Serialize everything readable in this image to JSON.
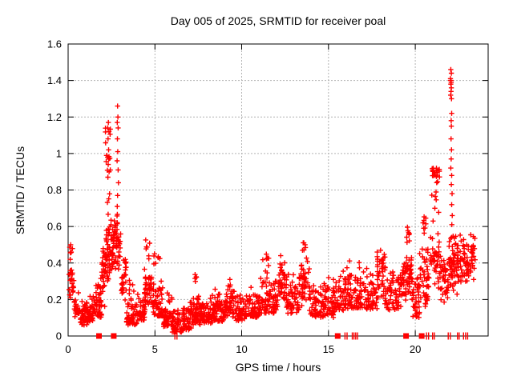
{
  "figure": {
    "background": "#ffffff",
    "text_color": "#000000"
  },
  "chart_data": {
    "type": "scatter",
    "title": "Day 005 of 2025, SRMTID for receiver poal",
    "xlabel": "GPS time / hours",
    "ylabel": "SRMTID / TECUs",
    "xlim": [
      0,
      24.2
    ],
    "ylim": [
      0,
      1.6
    ],
    "xticks": [
      0,
      5,
      10,
      15,
      20
    ],
    "xtick_labels": [
      "0",
      "5",
      "10",
      "15",
      "20"
    ],
    "yticks": [
      0,
      0.2,
      0.4,
      0.6,
      0.8,
      1,
      1.2,
      1.4,
      1.6
    ],
    "ytick_labels": [
      "0",
      "0.2",
      "0.4",
      "0.6",
      "0.8",
      "1",
      "1.2",
      "1.4",
      "1.6"
    ],
    "grid": {
      "on": true,
      "style": "dashed",
      "color": "#b3b3b3"
    },
    "marker": {
      "shape": "plus",
      "color": "#ff0000",
      "size": 6.4,
      "stroke": 1.4
    },
    "legend": null,
    "band_bins": [
      [
        0.05,
        0.35,
        0.18,
        0.42,
        22,
        "m"
      ],
      [
        0.08,
        0.25,
        0.42,
        0.5,
        4,
        "m"
      ],
      [
        0.35,
        0.7,
        0.1,
        0.25,
        30,
        "l"
      ],
      [
        0.7,
        1.2,
        0.06,
        0.2,
        55,
        "l"
      ],
      [
        1.2,
        1.6,
        0.08,
        0.24,
        40,
        "l"
      ],
      [
        1.6,
        1.95,
        0.1,
        0.36,
        40,
        "l"
      ],
      [
        1.95,
        2.15,
        0.15,
        0.55,
        28,
        "m"
      ],
      [
        2.15,
        2.45,
        0.3,
        0.85,
        45,
        "l"
      ],
      [
        2.15,
        2.45,
        0.85,
        1.18,
        12,
        "m"
      ],
      [
        2.45,
        2.75,
        0.28,
        0.7,
        42,
        "m"
      ],
      [
        2.75,
        3.05,
        0.3,
        0.68,
        30,
        "m"
      ],
      [
        3.05,
        3.35,
        0.15,
        0.45,
        30,
        "m"
      ],
      [
        3.35,
        4.0,
        0.06,
        0.22,
        55,
        "l"
      ],
      [
        3.5,
        3.8,
        0.22,
        0.33,
        6,
        "m"
      ],
      [
        4.0,
        4.4,
        0.08,
        0.26,
        38,
        "l"
      ],
      [
        4.4,
        4.8,
        0.12,
        0.4,
        40,
        "m"
      ],
      [
        4.45,
        4.7,
        0.4,
        0.56,
        7,
        "m"
      ],
      [
        4.8,
        5.45,
        0.1,
        0.38,
        55,
        "l"
      ],
      [
        4.9,
        5.35,
        0.38,
        0.47,
        8,
        "m"
      ],
      [
        5.45,
        6.0,
        0.05,
        0.24,
        48,
        "l"
      ],
      [
        6.0,
        6.6,
        0.02,
        0.16,
        50,
        "l"
      ],
      [
        6.6,
        7.1,
        0.03,
        0.2,
        48,
        "l"
      ],
      [
        7.1,
        7.6,
        0.06,
        0.28,
        50,
        "l"
      ],
      [
        7.3,
        7.55,
        0.28,
        0.35,
        5,
        "m"
      ],
      [
        7.6,
        8.3,
        0.07,
        0.22,
        60,
        "l"
      ],
      [
        8.3,
        9.0,
        0.08,
        0.26,
        60,
        "l"
      ],
      [
        9.0,
        9.6,
        0.1,
        0.3,
        50,
        "l"
      ],
      [
        9.6,
        10.3,
        0.08,
        0.26,
        55,
        "l"
      ],
      [
        10.3,
        11.0,
        0.1,
        0.28,
        55,
        "l"
      ],
      [
        11.0,
        11.7,
        0.12,
        0.38,
        50,
        "l"
      ],
      [
        11.2,
        11.6,
        0.38,
        0.46,
        6,
        "m"
      ],
      [
        11.7,
        12.1,
        0.12,
        0.35,
        35,
        "l"
      ],
      [
        12.1,
        12.5,
        0.15,
        0.42,
        35,
        "m"
      ],
      [
        12.5,
        13.3,
        0.12,
        0.36,
        60,
        "l"
      ],
      [
        13.3,
        13.9,
        0.15,
        0.45,
        45,
        "m"
      ],
      [
        13.5,
        13.8,
        0.45,
        0.52,
        5,
        "m"
      ],
      [
        13.9,
        14.6,
        0.1,
        0.32,
        55,
        "l"
      ],
      [
        14.6,
        15.4,
        0.1,
        0.33,
        60,
        "l"
      ],
      [
        15.4,
        16.2,
        0.14,
        0.4,
        60,
        "l"
      ],
      [
        16.2,
        17.0,
        0.15,
        0.42,
        60,
        "l"
      ],
      [
        17.0,
        17.8,
        0.14,
        0.38,
        58,
        "l"
      ],
      [
        17.8,
        18.25,
        0.16,
        0.47,
        40,
        "m"
      ],
      [
        18.25,
        19.1,
        0.14,
        0.4,
        60,
        "l"
      ],
      [
        19.1,
        19.45,
        0.15,
        0.42,
        30,
        "m"
      ],
      [
        19.45,
        19.85,
        0.15,
        0.5,
        42,
        "m"
      ],
      [
        19.5,
        19.75,
        0.5,
        0.66,
        8,
        "m"
      ],
      [
        19.85,
        20.25,
        0.1,
        0.38,
        35,
        "l"
      ],
      [
        20.25,
        20.8,
        0.12,
        0.55,
        50,
        "m"
      ],
      [
        20.35,
        20.65,
        0.55,
        0.71,
        8,
        "m"
      ],
      [
        20.85,
        21.45,
        0.25,
        0.6,
        40,
        "m"
      ],
      [
        20.95,
        21.4,
        0.6,
        0.92,
        26,
        "h"
      ],
      [
        21.45,
        21.95,
        0.15,
        0.5,
        40,
        "m"
      ],
      [
        21.95,
        22.35,
        0.22,
        0.58,
        48,
        "m"
      ],
      [
        22.35,
        23.0,
        0.22,
        0.6,
        55,
        "m"
      ],
      [
        23.0,
        23.45,
        0.25,
        0.57,
        35,
        "m"
      ]
    ],
    "outlier_points": [
      [
        0.15,
        0.5
      ],
      [
        0.18,
        0.46
      ],
      [
        0.12,
        0.42
      ],
      [
        2.32,
        1.17
      ],
      [
        2.28,
        1.14
      ],
      [
        2.35,
        1.12
      ],
      [
        2.3,
        1.08
      ],
      [
        2.33,
        1.02
      ],
      [
        2.27,
        0.98
      ],
      [
        2.31,
        0.94
      ],
      [
        2.36,
        0.9
      ],
      [
        2.29,
        0.87
      ],
      [
        2.85,
        1.26
      ],
      [
        2.87,
        1.2
      ],
      [
        2.83,
        1.17
      ],
      [
        2.88,
        1.14
      ],
      [
        2.84,
        1.08
      ],
      [
        2.86,
        1.01
      ],
      [
        2.82,
        0.96
      ],
      [
        2.88,
        0.91
      ],
      [
        2.9,
        0.84
      ],
      [
        2.85,
        0.77
      ],
      [
        2.83,
        0.71
      ],
      [
        9.32,
        0.31
      ],
      [
        12.25,
        0.44
      ],
      [
        13.65,
        0.5
      ],
      [
        18.0,
        0.47
      ],
      [
        22.05,
        1.46
      ],
      [
        22.08,
        1.44
      ],
      [
        22.03,
        1.41
      ],
      [
        22.06,
        1.4
      ],
      [
        22.04,
        1.4
      ],
      [
        22.07,
        1.39
      ],
      [
        22.05,
        1.38
      ],
      [
        22.08,
        1.36
      ],
      [
        22.06,
        1.34
      ],
      [
        22.04,
        1.32
      ],
      [
        22.09,
        1.3
      ],
      [
        22.1,
        1.22
      ],
      [
        22.07,
        1.18
      ],
      [
        22.08,
        1.15
      ],
      [
        22.06,
        1.08
      ],
      [
        22.09,
        1.02
      ],
      [
        22.07,
        0.97
      ],
      [
        22.05,
        0.92
      ],
      [
        22.1,
        0.88
      ],
      [
        22.08,
        0.83
      ],
      [
        22.12,
        0.78
      ],
      [
        22.1,
        0.72
      ],
      [
        22.13,
        0.66
      ],
      [
        22.11,
        0.61
      ]
    ],
    "zero_squares": [
      1.78,
      2.63,
      15.53,
      19.47,
      20.37
    ],
    "zero_ticks": [
      6.15,
      6.27,
      15.95,
      16.07,
      16.37,
      16.47,
      16.57,
      16.67,
      20.65,
      20.77,
      21.0,
      21.1,
      21.9,
      22.02,
      22.43,
      22.53,
      22.78,
      22.9,
      23.02
    ]
  }
}
